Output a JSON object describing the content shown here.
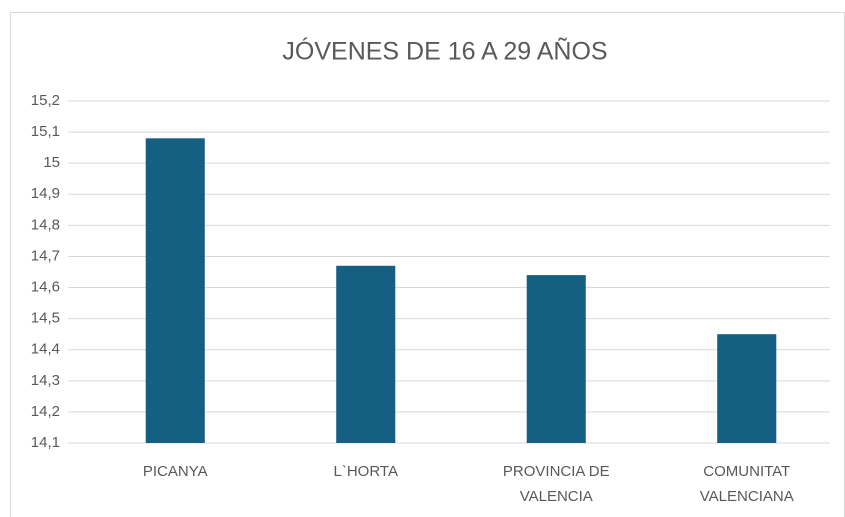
{
  "chart_data": {
    "type": "bar",
    "title": "JÓVENES DE 16 A 29 AÑOS",
    "categories": [
      "PICANYA",
      "L`HORTA",
      "PROVINCIA DE VALENCIA",
      "COMUNITAT VALENCIANA"
    ],
    "values": [
      15.08,
      14.67,
      14.64,
      14.45
    ],
    "color": "#155f82",
    "ylim": [
      14.1,
      15.2
    ],
    "yticks": [
      {
        "value": 14.1,
        "label": "14,1"
      },
      {
        "value": 14.2,
        "label": "14,2"
      },
      {
        "value": 14.3,
        "label": "14,3"
      },
      {
        "value": 14.4,
        "label": "14,4"
      },
      {
        "value": 14.5,
        "label": "14,5"
      },
      {
        "value": 14.6,
        "label": "14,6"
      },
      {
        "value": 14.7,
        "label": "14,7"
      },
      {
        "value": 14.8,
        "label": "14,8"
      },
      {
        "value": 14.9,
        "label": "14,9"
      },
      15,
      {
        "value": 15.1,
        "label": "15,1"
      },
      {
        "value": 15.2,
        "label": "15,2"
      }
    ],
    "grid": true
  }
}
